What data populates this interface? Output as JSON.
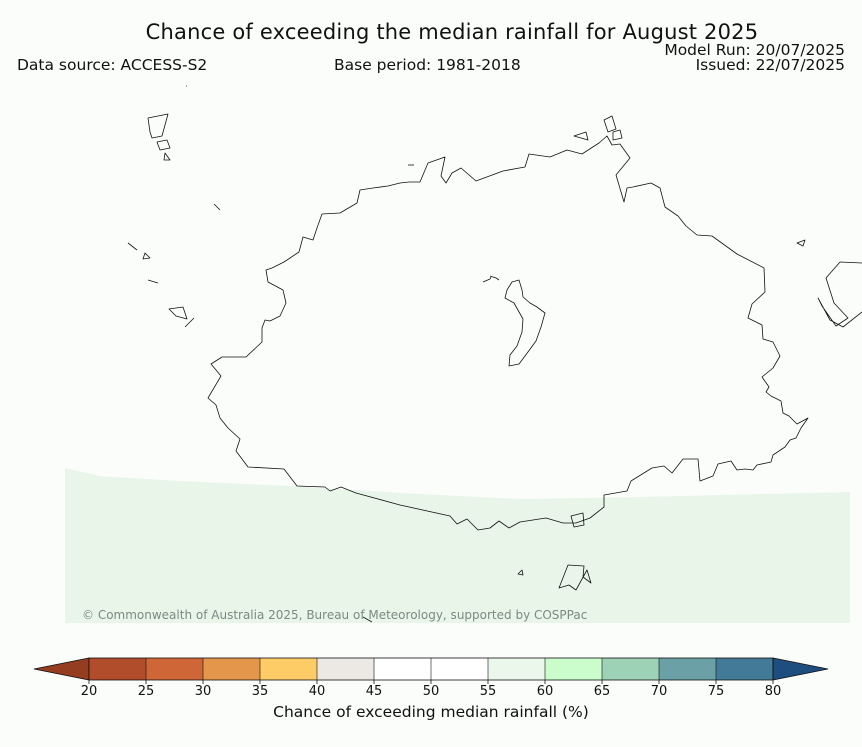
{
  "header": {
    "title": "Chance of exceeding the median rainfall for August 2025",
    "data_source": "Data source: ACCESS-S2",
    "base_period": "Base period: 1981-2018",
    "model_run": "Model Run: 20/07/2025",
    "issued": "Issued: 22/07/2025"
  },
  "map": {
    "copyright": "© Commonwealth of Australia 2025, Bureau of Meteorology, supported by COSPPac",
    "shaded_region_class": "55-60",
    "shaded_color": "#eaf5ea"
  },
  "colorbar": {
    "label": "Chance of exceeding median rainfall (%)",
    "ticks": [
      "20",
      "25",
      "30",
      "35",
      "40",
      "45",
      "50",
      "55",
      "60",
      "65",
      "70",
      "75",
      "80"
    ],
    "colors": [
      "#b24d2b",
      "#cf6637",
      "#e4974a",
      "#fdcc66",
      "#ece9e5",
      "#ffffff",
      "#ffffff",
      "#eaf7ea",
      "#cbfccb",
      "#9dd2b7",
      "#6ba1a6",
      "#437a98"
    ],
    "under_color": "#953d21",
    "over_color": "#1e4e7f"
  }
}
